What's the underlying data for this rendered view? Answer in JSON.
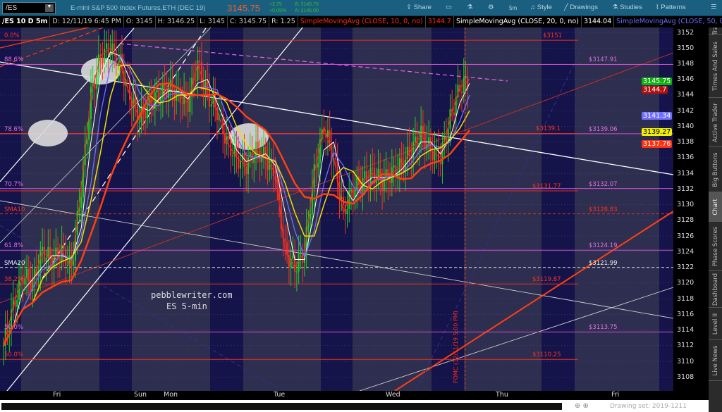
{
  "header": {
    "symbol": "/ES",
    "description": "E-mini S&P 500 Index Futures,ETH (DEC 19)",
    "last": "3145.75",
    "change": "+2.75",
    "change_pct": "+0.09%",
    "bid": "B: 3145.75",
    "ask": "A: 3146.00",
    "toolbar": [
      "Share",
      "5m",
      "Style",
      "Drawings",
      "Studies",
      "Patterns"
    ]
  },
  "info": {
    "chart": "/ES 10 D 5m",
    "date": "D: 12/11/19 6:45 PM",
    "open": "O: 3145",
    "high": "H: 3146.25",
    "low": "L: 3145",
    "close": "C: 3145.75",
    "range": "R: 1.25",
    "sma10": "SimpleMovingAvg (CLOSE, 10, 0, no)",
    "sma10_val": "3144.7",
    "sma20": "SimpleMovingAvg (CLOSE, 20, 0, no)",
    "sma20_val": "3144.04",
    "sma50": "SimpleMovingAvg (CLOSE, 50, 0, no)",
    "more": "..."
  },
  "watermark": [
    "pebblewriter.com",
    "ES 5-min"
  ],
  "event_label": "FOMC (12/11/19 5:00 PM)",
  "side_tabs": [
    "Trade",
    "Times And Sales",
    "Active Trader",
    "Big Buttons",
    "Chart",
    "Phase Scores",
    "Dashboard",
    "Level II",
    "Live News"
  ],
  "drawing_set": "Drawing set: 2019-1211",
  "colors": {
    "sma10": "#ff2a1a",
    "sma20": "#ffffff",
    "sma50": "#7070ff",
    "ma_yellow": "#f0e000",
    "ma_orange": "#ff4010",
    "fib": "#d050d0",
    "level": "#e03020",
    "bg": "#2e2e50",
    "night": "#14144a"
  },
  "chart_data": {
    "type": "candlestick",
    "ylim": [
      3107,
      3153
    ],
    "y_ticks": [
      3152,
      3150,
      3148,
      3146,
      3144,
      3142,
      3140,
      3138,
      3136,
      3134,
      3132,
      3130,
      3128,
      3126,
      3124,
      3122,
      3120,
      3118,
      3116,
      3114,
      3112,
      3110,
      3108
    ],
    "x_ticks": [
      "Fri",
      "Sun",
      "Mon",
      "Tue",
      "Wed",
      "Thu",
      "Fri"
    ],
    "approx_close": [
      3112,
      3117,
      3121,
      3120,
      3124,
      3123,
      3124,
      3122,
      3132,
      3144,
      3149,
      3150,
      3148,
      3144,
      3141,
      3143,
      3144,
      3145,
      3144,
      3143,
      3148,
      3144,
      3142,
      3138,
      3136,
      3135,
      3137,
      3136,
      3134,
      3124,
      3122,
      3124,
      3134,
      3140,
      3136,
      3129,
      3132,
      3133,
      3134,
      3133,
      3134,
      3135,
      3137,
      3139,
      3137,
      3136,
      3141,
      3145,
      3146
    ],
    "fib_levels": [
      {
        "label": "0.0%",
        "price": 3151,
        "text": "$3151",
        "kind": "level"
      },
      {
        "label": "88.6%",
        "price": 3147.91,
        "text": "$3147.91",
        "kind": "fib"
      },
      {
        "label": "78.6%",
        "price": 3139.06,
        "text": "$3139.06",
        "kind": "fib"
      },
      {
        "label": "",
        "price": 3139.1,
        "text": "$3139.1",
        "kind": "level"
      },
      {
        "label": "70.7%",
        "price": 3132.07,
        "text": "$3132.07",
        "kind": "fib"
      },
      {
        "label": "",
        "price": 3131.77,
        "text": "$3131.77",
        "kind": "level"
      },
      {
        "label": "SMA10",
        "price": 3128.83,
        "text": "$3128.83",
        "kind": "sma10"
      },
      {
        "label": "61.8%",
        "price": 3124.19,
        "text": "$3124.19",
        "kind": "fib"
      },
      {
        "label": "SMA20",
        "price": 3121.99,
        "text": "$3121.99",
        "kind": "sma20"
      },
      {
        "label": "38.2%",
        "price": 3119.87,
        "text": "$3119.87",
        "kind": "level"
      },
      {
        "label": "50.0%",
        "price": 3113.75,
        "text": "$3113.75",
        "kind": "fib"
      },
      {
        "label": "50.0%",
        "price": 3110.25,
        "text": "$3110.25",
        "kind": "level"
      }
    ],
    "price_labels": [
      {
        "text": "3145.75",
        "price": 3145.75,
        "color": "#10b010"
      },
      {
        "text": "3144.7",
        "price": 3144.7,
        "color": "#b01010"
      },
      {
        "text": "3141.34",
        "price": 3141.34,
        "color": "#7070ff"
      },
      {
        "text": "3139.27",
        "price": 3139.27,
        "color": "#f0f000"
      },
      {
        "text": "3137.76",
        "price": 3137.76,
        "color": "#ff3010"
      }
    ]
  }
}
